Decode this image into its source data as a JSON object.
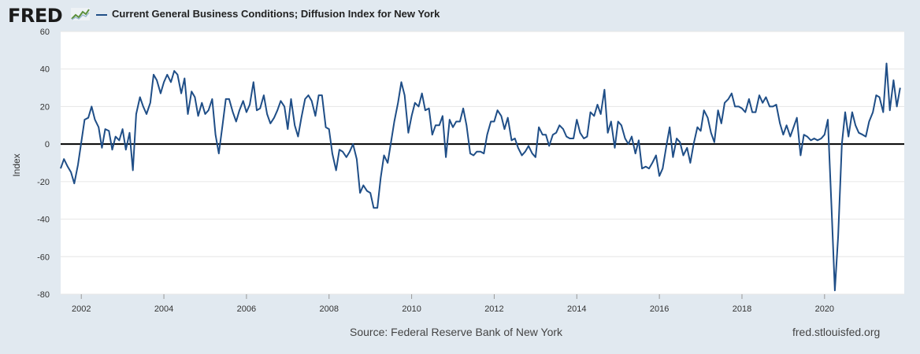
{
  "logo_text": "FRED",
  "colors": {
    "series": "#1f4e87",
    "background": "#e1e9f0",
    "plot": "#ffffff",
    "grid": "#e6e6e6",
    "zero_line": "#000000"
  },
  "icons": {
    "logo_graph": "line-graph-icon"
  },
  "footer": {
    "source": "Source: Federal Reserve Bank of New York",
    "site": "fred.stlouisfed.org"
  },
  "chart_data": {
    "type": "line",
    "title": "",
    "legend": [
      "Current General Business Conditions; Diffusion Index for New York"
    ],
    "xlabel": "",
    "ylabel": "Index",
    "xlim": [
      2001.5,
      2021.93
    ],
    "ylim": [
      -80,
      60
    ],
    "yticks": [
      -80,
      -60,
      -40,
      -20,
      0,
      20,
      40,
      60
    ],
    "xticks": [
      2002,
      2004,
      2006,
      2008,
      2010,
      2012,
      2014,
      2016,
      2018,
      2020
    ],
    "grid": true,
    "reference_line": 0,
    "series": [
      {
        "name": "Current General Business Conditions; Diffusion Index for New York",
        "points": [
          [
            2001.5,
            -13
          ],
          [
            2001.58,
            -8
          ],
          [
            2001.67,
            -12
          ],
          [
            2001.75,
            -15
          ],
          [
            2001.83,
            -21
          ],
          [
            2001.92,
            -11
          ],
          [
            2002.0,
            1
          ],
          [
            2002.08,
            13
          ],
          [
            2002.17,
            14
          ],
          [
            2002.25,
            20
          ],
          [
            2002.33,
            13
          ],
          [
            2002.42,
            9
          ],
          [
            2002.5,
            -2
          ],
          [
            2002.58,
            8
          ],
          [
            2002.67,
            7
          ],
          [
            2002.75,
            -3
          ],
          [
            2002.83,
            4
          ],
          [
            2002.92,
            2
          ],
          [
            2003.0,
            8
          ],
          [
            2003.08,
            -3
          ],
          [
            2003.17,
            6
          ],
          [
            2003.25,
            -14
          ],
          [
            2003.33,
            16
          ],
          [
            2003.42,
            25
          ],
          [
            2003.5,
            20
          ],
          [
            2003.58,
            16
          ],
          [
            2003.67,
            22
          ],
          [
            2003.75,
            37
          ],
          [
            2003.83,
            34
          ],
          [
            2003.92,
            27
          ],
          [
            2004.0,
            33
          ],
          [
            2004.08,
            37
          ],
          [
            2004.17,
            33
          ],
          [
            2004.25,
            39
          ],
          [
            2004.33,
            37
          ],
          [
            2004.42,
            27
          ],
          [
            2004.5,
            35
          ],
          [
            2004.58,
            16
          ],
          [
            2004.67,
            28
          ],
          [
            2004.75,
            25
          ],
          [
            2004.83,
            15
          ],
          [
            2004.92,
            22
          ],
          [
            2005.0,
            16
          ],
          [
            2005.08,
            18
          ],
          [
            2005.17,
            24
          ],
          [
            2005.25,
            5
          ],
          [
            2005.33,
            -5
          ],
          [
            2005.42,
            10
          ],
          [
            2005.5,
            24
          ],
          [
            2005.58,
            24
          ],
          [
            2005.67,
            17
          ],
          [
            2005.75,
            12
          ],
          [
            2005.83,
            18
          ],
          [
            2005.92,
            23
          ],
          [
            2006.0,
            17
          ],
          [
            2006.08,
            21
          ],
          [
            2006.17,
            33
          ],
          [
            2006.25,
            18
          ],
          [
            2006.33,
            19
          ],
          [
            2006.42,
            26
          ],
          [
            2006.5,
            16
          ],
          [
            2006.58,
            11
          ],
          [
            2006.67,
            14
          ],
          [
            2006.75,
            18
          ],
          [
            2006.83,
            23
          ],
          [
            2006.92,
            20
          ],
          [
            2007.0,
            8
          ],
          [
            2007.08,
            24
          ],
          [
            2007.17,
            10
          ],
          [
            2007.25,
            4
          ],
          [
            2007.33,
            14
          ],
          [
            2007.42,
            24
          ],
          [
            2007.5,
            26
          ],
          [
            2007.58,
            23
          ],
          [
            2007.67,
            15
          ],
          [
            2007.75,
            26
          ],
          [
            2007.83,
            26
          ],
          [
            2007.92,
            9
          ],
          [
            2008.0,
            8
          ],
          [
            2008.08,
            -5
          ],
          [
            2008.17,
            -14
          ],
          [
            2008.25,
            -3
          ],
          [
            2008.33,
            -4
          ],
          [
            2008.42,
            -7
          ],
          [
            2008.5,
            -4
          ],
          [
            2008.58,
            0
          ],
          [
            2008.67,
            -8
          ],
          [
            2008.75,
            -26
          ],
          [
            2008.83,
            -22
          ],
          [
            2008.92,
            -25
          ],
          [
            2009.0,
            -26
          ],
          [
            2009.08,
            -34
          ],
          [
            2009.17,
            -34
          ],
          [
            2009.25,
            -18
          ],
          [
            2009.33,
            -6
          ],
          [
            2009.42,
            -10
          ],
          [
            2009.5,
            1
          ],
          [
            2009.58,
            12
          ],
          [
            2009.67,
            22
          ],
          [
            2009.75,
            33
          ],
          [
            2009.83,
            26
          ],
          [
            2009.92,
            6
          ],
          [
            2010.0,
            15
          ],
          [
            2010.08,
            22
          ],
          [
            2010.17,
            20
          ],
          [
            2010.25,
            27
          ],
          [
            2010.33,
            18
          ],
          [
            2010.42,
            19
          ],
          [
            2010.5,
            5
          ],
          [
            2010.58,
            10
          ],
          [
            2010.67,
            10
          ],
          [
            2010.75,
            15
          ],
          [
            2010.83,
            -7
          ],
          [
            2010.92,
            13
          ],
          [
            2011.0,
            9
          ],
          [
            2011.08,
            12
          ],
          [
            2011.17,
            12
          ],
          [
            2011.25,
            19
          ],
          [
            2011.33,
            10
          ],
          [
            2011.42,
            -5
          ],
          [
            2011.5,
            -6
          ],
          [
            2011.58,
            -4
          ],
          [
            2011.67,
            -4
          ],
          [
            2011.75,
            -5
          ],
          [
            2011.83,
            5
          ],
          [
            2011.92,
            12
          ],
          [
            2012.0,
            12
          ],
          [
            2012.08,
            18
          ],
          [
            2012.17,
            15
          ],
          [
            2012.25,
            8
          ],
          [
            2012.33,
            14
          ],
          [
            2012.42,
            2
          ],
          [
            2012.5,
            3
          ],
          [
            2012.58,
            -2
          ],
          [
            2012.67,
            -6
          ],
          [
            2012.75,
            -4
          ],
          [
            2012.83,
            -1
          ],
          [
            2012.92,
            -5
          ],
          [
            2013.0,
            -7
          ],
          [
            2013.08,
            9
          ],
          [
            2013.17,
            5
          ],
          [
            2013.25,
            5
          ],
          [
            2013.33,
            -1
          ],
          [
            2013.42,
            5
          ],
          [
            2013.5,
            6
          ],
          [
            2013.58,
            10
          ],
          [
            2013.67,
            8
          ],
          [
            2013.75,
            4
          ],
          [
            2013.83,
            3
          ],
          [
            2013.92,
            3
          ],
          [
            2014.0,
            13
          ],
          [
            2014.08,
            6
          ],
          [
            2014.17,
            3
          ],
          [
            2014.25,
            4
          ],
          [
            2014.33,
            17
          ],
          [
            2014.42,
            15
          ],
          [
            2014.5,
            21
          ],
          [
            2014.58,
            16
          ],
          [
            2014.67,
            29
          ],
          [
            2014.75,
            6
          ],
          [
            2014.83,
            12
          ],
          [
            2014.92,
            -2
          ],
          [
            2015.0,
            12
          ],
          [
            2015.08,
            10
          ],
          [
            2015.17,
            3
          ],
          [
            2015.25,
            0
          ],
          [
            2015.33,
            4
          ],
          [
            2015.42,
            -5
          ],
          [
            2015.5,
            2
          ],
          [
            2015.58,
            -13
          ],
          [
            2015.67,
            -12
          ],
          [
            2015.75,
            -13
          ],
          [
            2015.83,
            -10
          ],
          [
            2015.92,
            -6
          ],
          [
            2016.0,
            -17
          ],
          [
            2016.08,
            -13
          ],
          [
            2016.17,
            -1
          ],
          [
            2016.25,
            9
          ],
          [
            2016.33,
            -7
          ],
          [
            2016.42,
            3
          ],
          [
            2016.5,
            1
          ],
          [
            2016.58,
            -6
          ],
          [
            2016.67,
            -2
          ],
          [
            2016.75,
            -10
          ],
          [
            2016.83,
            0
          ],
          [
            2016.92,
            9
          ],
          [
            2017.0,
            7
          ],
          [
            2017.08,
            18
          ],
          [
            2017.17,
            14
          ],
          [
            2017.25,
            6
          ],
          [
            2017.33,
            1
          ],
          [
            2017.42,
            18
          ],
          [
            2017.5,
            11
          ],
          [
            2017.58,
            22
          ],
          [
            2017.67,
            24
          ],
          [
            2017.75,
            27
          ],
          [
            2017.83,
            20
          ],
          [
            2017.92,
            20
          ],
          [
            2018.0,
            19
          ],
          [
            2018.08,
            17
          ],
          [
            2018.17,
            24
          ],
          [
            2018.25,
            17
          ],
          [
            2018.33,
            17
          ],
          [
            2018.42,
            26
          ],
          [
            2018.5,
            22
          ],
          [
            2018.58,
            25
          ],
          [
            2018.67,
            20
          ],
          [
            2018.75,
            20
          ],
          [
            2018.83,
            21
          ],
          [
            2018.92,
            11
          ],
          [
            2019.0,
            5
          ],
          [
            2019.08,
            10
          ],
          [
            2019.17,
            4
          ],
          [
            2019.25,
            9
          ],
          [
            2019.33,
            14
          ],
          [
            2019.42,
            -6
          ],
          [
            2019.5,
            5
          ],
          [
            2019.58,
            4
          ],
          [
            2019.67,
            2
          ],
          [
            2019.75,
            3
          ],
          [
            2019.83,
            2
          ],
          [
            2019.92,
            3
          ],
          [
            2020.0,
            5
          ],
          [
            2020.08,
            13
          ],
          [
            2020.17,
            -34
          ],
          [
            2020.25,
            -78
          ],
          [
            2020.33,
            -49
          ],
          [
            2020.42,
            0
          ],
          [
            2020.5,
            17
          ],
          [
            2020.58,
            4
          ],
          [
            2020.67,
            17
          ],
          [
            2020.75,
            10
          ],
          [
            2020.83,
            6
          ],
          [
            2020.92,
            5
          ],
          [
            2021.0,
            4
          ],
          [
            2021.08,
            12
          ],
          [
            2021.17,
            17
          ],
          [
            2021.25,
            26
          ],
          [
            2021.33,
            25
          ],
          [
            2021.42,
            17
          ],
          [
            2021.5,
            43
          ],
          [
            2021.58,
            18
          ],
          [
            2021.67,
            34
          ],
          [
            2021.75,
            20
          ],
          [
            2021.83,
            30
          ]
        ]
      }
    ]
  }
}
